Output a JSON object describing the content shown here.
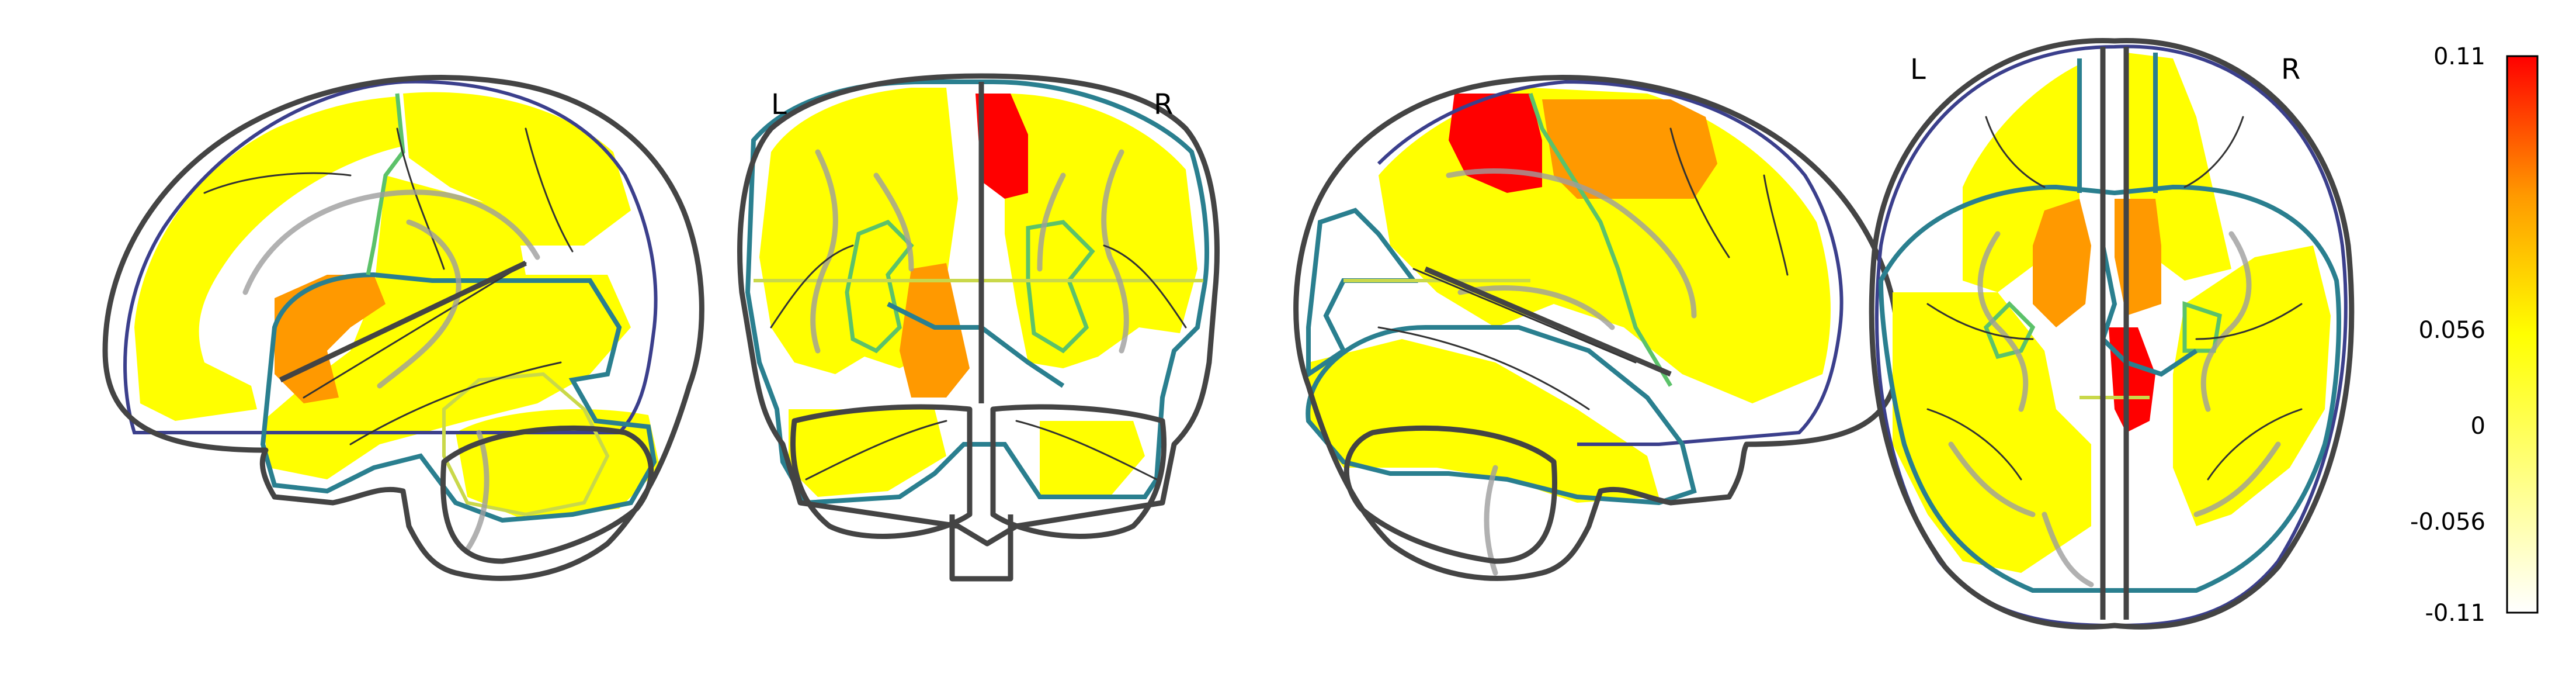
{
  "views": [
    {
      "name": "sagittal-left",
      "label_left": "",
      "label_right": ""
    },
    {
      "name": "coronal",
      "label_left": "L",
      "label_right": "R"
    },
    {
      "name": "sagittal-right",
      "label_left": "",
      "label_right": ""
    },
    {
      "name": "axial",
      "label_left": "L",
      "label_right": "R"
    }
  ],
  "colorbar": {
    "colormap": "cold_hot_positive",
    "colors": [
      "#ffffff",
      "#ffff80",
      "#ffff00",
      "#ff9900",
      "#ff0000"
    ],
    "max_label": "0.11",
    "upper_mid_label": "0.056",
    "zero_label": "0",
    "lower_mid_label": "-0.056",
    "min_label": "-0.11"
  },
  "colors": {
    "yellow": "#ffff00",
    "orange": "#ff9900",
    "red": "#ff0000",
    "outline": "#444444"
  }
}
